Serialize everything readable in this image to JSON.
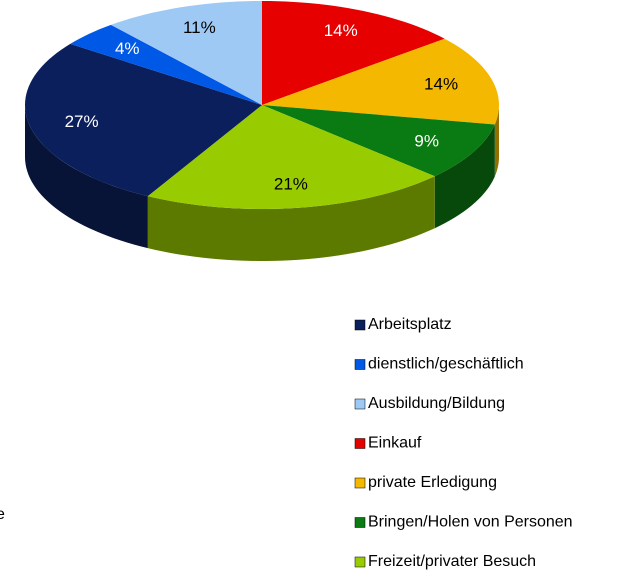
{
  "chart_data": {
    "type": "pie3d",
    "categories": [
      "Arbeitsplatz",
      "dienstlich/geschäftlich",
      "Ausbildung/Bildung",
      "Einkauf",
      "private Erledigung",
      "Bringen/Holen von Personen",
      "Freizeit/privater Besuch"
    ],
    "values": [
      27,
      4,
      11,
      14,
      14,
      9,
      21
    ],
    "value_labels": [
      "27%",
      "4%",
      "11%",
      "14%",
      "14%",
      "9%",
      "21%"
    ],
    "colors": [
      "#0b1f5c",
      "#0059e6",
      "#9ec9f5",
      "#e60000",
      "#f5b800",
      "#0a7a12",
      "#99cc00"
    ],
    "start_category": "Einkauf",
    "legend": "bottom-right",
    "annotations": [
      "e"
    ]
  }
}
